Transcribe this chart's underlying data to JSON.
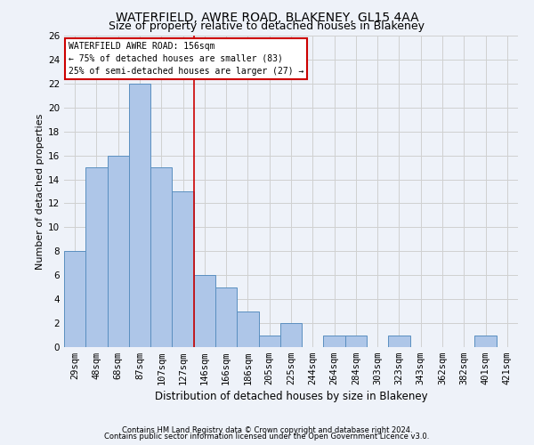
{
  "title": "WATERFIELD, AWRE ROAD, BLAKENEY, GL15 4AA",
  "subtitle": "Size of property relative to detached houses in Blakeney",
  "xlabel": "Distribution of detached houses by size in Blakeney",
  "ylabel": "Number of detached properties",
  "footer_line1": "Contains HM Land Registry data © Crown copyright and database right 2024.",
  "footer_line2": "Contains public sector information licensed under the Open Government Licence v3.0.",
  "bar_labels": [
    "29sqm",
    "48sqm",
    "68sqm",
    "87sqm",
    "107sqm",
    "127sqm",
    "146sqm",
    "166sqm",
    "186sqm",
    "205sqm",
    "225sqm",
    "244sqm",
    "264sqm",
    "284sqm",
    "303sqm",
    "323sqm",
    "343sqm",
    "362sqm",
    "382sqm",
    "401sqm",
    "421sqm"
  ],
  "bar_values": [
    8,
    15,
    16,
    22,
    15,
    13,
    6,
    5,
    3,
    1,
    2,
    0,
    1,
    1,
    0,
    1,
    0,
    0,
    0,
    1,
    0
  ],
  "bar_color": "#aec6e8",
  "bar_edge_color": "#5a8fc0",
  "grid_color": "#d0d0d0",
  "background_color": "#eef2f9",
  "vline_x": 5.5,
  "vline_color": "#cc0000",
  "annotation_text": "WATERFIELD AWRE ROAD: 156sqm\n← 75% of detached houses are smaller (83)\n25% of semi-detached houses are larger (27) →",
  "annotation_box_color": "#ffffff",
  "annotation_box_edge": "#cc0000",
  "ylim": [
    0,
    26
  ],
  "yticks": [
    0,
    2,
    4,
    6,
    8,
    10,
    12,
    14,
    16,
    18,
    20,
    22,
    24,
    26
  ],
  "title_fontsize": 10,
  "subtitle_fontsize": 9,
  "xlabel_fontsize": 8.5,
  "ylabel_fontsize": 8,
  "tick_fontsize": 7.5,
  "annotation_fontsize": 7,
  "footer_fontsize": 6
}
